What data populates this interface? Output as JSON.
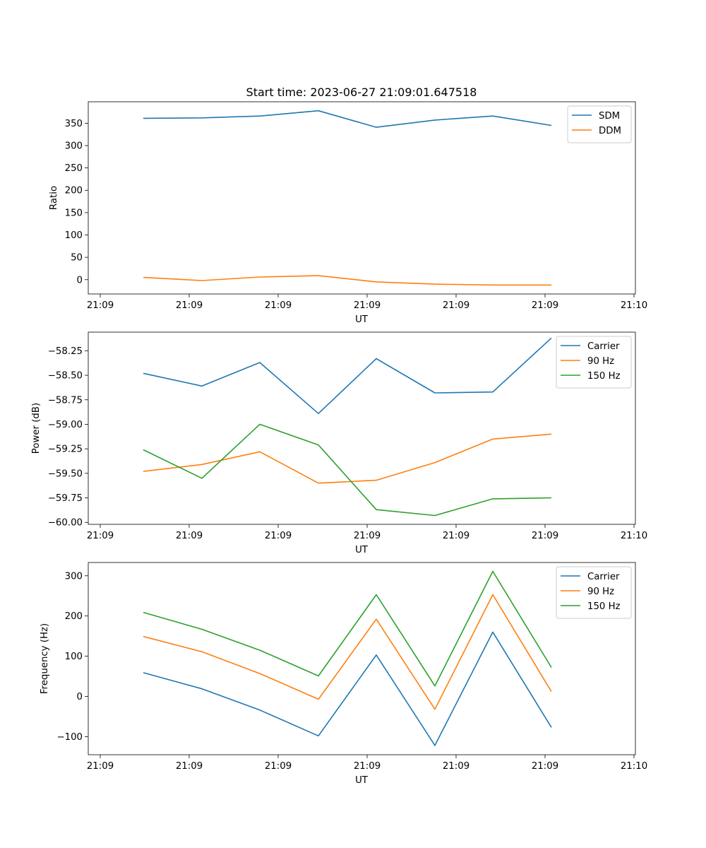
{
  "chart_data": [
    {
      "type": "line",
      "title": "Start time: 2023-06-27 21:09:01.647518",
      "xlabel": "UT",
      "ylabel": "Ratio",
      "x_tick_labels": [
        "21:09",
        "21:09",
        "21:09",
        "21:09",
        "21:09",
        "21:09",
        "21:10"
      ],
      "y_ticks": [
        0,
        50,
        100,
        150,
        200,
        250,
        300,
        350
      ],
      "ylim": [
        -32,
        398
      ],
      "grid": false,
      "legend_position": "top-right",
      "series": [
        {
          "name": "SDM",
          "color": "#1f77b4",
          "values": [
            361,
            362,
            366,
            378,
            341,
            357,
            366,
            345
          ]
        },
        {
          "name": "DDM",
          "color": "#ff7f0e",
          "values": [
            5,
            -2,
            6,
            9,
            -5,
            -10,
            -12,
            -12
          ]
        }
      ]
    },
    {
      "type": "line",
      "title": "",
      "xlabel": "UT",
      "ylabel": "Power (dB)",
      "x_tick_labels": [
        "21:09",
        "21:09",
        "21:09",
        "21:09",
        "21:09",
        "21:09",
        "21:10"
      ],
      "y_ticks": [
        -60.0,
        -59.75,
        -59.5,
        -59.25,
        -59.0,
        -58.75,
        -58.5,
        -58.25
      ],
      "y_tick_labels": [
        "−60.00",
        "−59.75",
        "−59.50",
        "−59.25",
        "−59.00",
        "−58.75",
        "−58.50",
        "−58.25"
      ],
      "ylim": [
        -60.02,
        -58.06
      ],
      "grid": false,
      "legend_position": "top-right",
      "series": [
        {
          "name": "Carrier",
          "color": "#1f77b4",
          "values": [
            -58.48,
            -58.61,
            -58.37,
            -58.89,
            -58.33,
            -58.68,
            -58.67,
            -58.12
          ]
        },
        {
          "name": "90 Hz",
          "color": "#ff7f0e",
          "values": [
            -59.48,
            -59.41,
            -59.28,
            -59.6,
            -59.57,
            -59.39,
            -59.15,
            -59.1
          ]
        },
        {
          "name": "150 Hz",
          "color": "#2ca02c",
          "values": [
            -59.26,
            -59.55,
            -59.0,
            -59.21,
            -59.87,
            -59.93,
            -59.76,
            -59.75
          ]
        }
      ]
    },
    {
      "type": "line",
      "title": "",
      "xlabel": "UT",
      "ylabel": "Frequency (Hz)",
      "x_tick_labels": [
        "21:09",
        "21:09",
        "21:09",
        "21:09",
        "21:09",
        "21:09",
        "21:10"
      ],
      "y_ticks": [
        -100,
        0,
        100,
        200,
        300
      ],
      "y_tick_labels": [
        "−100",
        "0",
        "100",
        "200",
        "300"
      ],
      "ylim": [
        -145,
        333
      ],
      "grid": false,
      "legend_position": "top-right",
      "series": [
        {
          "name": "Carrier",
          "color": "#1f77b4",
          "values": [
            59,
            19,
            -34,
            -98,
            103,
            -122,
            160,
            -77
          ]
        },
        {
          "name": "90 Hz",
          "color": "#ff7f0e",
          "values": [
            149,
            111,
            57,
            -7,
            192,
            -32,
            253,
            12
          ]
        },
        {
          "name": "150 Hz",
          "color": "#2ca02c",
          "values": [
            209,
            167,
            115,
            51,
            253,
            26,
            311,
            72
          ]
        }
      ]
    }
  ]
}
